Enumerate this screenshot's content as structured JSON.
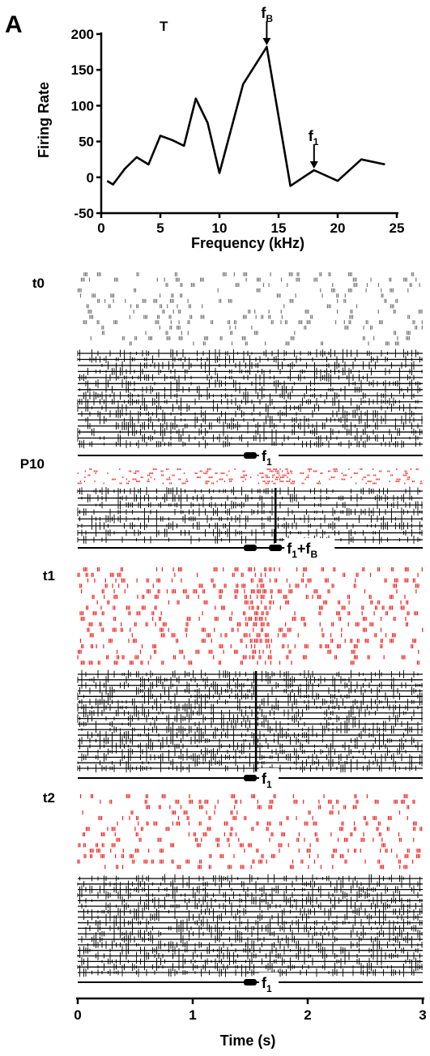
{
  "panel_label": "A",
  "chart_data": [
    {
      "type": "line",
      "title": "T",
      "xlabel": "Frequency (kHz)",
      "ylabel": "Firing Rate",
      "xlim": [
        0,
        25
      ],
      "ylim": [
        -50,
        200
      ],
      "xticks": [
        0,
        5,
        10,
        15,
        20,
        25
      ],
      "yticks": [
        -50,
        0,
        50,
        100,
        150,
        200
      ],
      "x": [
        0.5,
        1,
        2,
        3,
        4,
        5,
        6,
        7,
        8,
        9,
        10,
        12,
        14,
        16,
        18,
        20,
        22,
        24
      ],
      "y": [
        -5,
        -10,
        12,
        28,
        18,
        58,
        52,
        44,
        110,
        76,
        6,
        130,
        182,
        -12,
        10,
        -5,
        25,
        18
      ],
      "grid": false,
      "annotations": [
        {
          "id": "fB",
          "text": "f",
          "sub": "B",
          "x": 14,
          "y": 182
        },
        {
          "id": "f1",
          "text": "f",
          "sub": "1",
          "x": 18,
          "y": 10
        }
      ]
    },
    {
      "type": "raster",
      "xlabel": "Time (s)",
      "xlim": [
        0,
        3
      ],
      "xticks": [
        0,
        1,
        2,
        3
      ],
      "stimulus_onset_s": 1.5,
      "panels": [
        {
          "id": "t0",
          "label": "t0",
          "raster_color": "#777777",
          "stimulus_text": "f",
          "stimulus_sub": "1",
          "stimulus_extra": "",
          "stimulus_extra_sub": ""
        },
        {
          "id": "p10",
          "label": "P10",
          "raster_color": "#ee2222",
          "stimulus_text": "f",
          "stimulus_sub": "1",
          "stimulus_extra": "+f",
          "stimulus_extra_sub": "B"
        },
        {
          "id": "t1",
          "label": "t1",
          "raster_color": "#ee2222",
          "stimulus_text": "f",
          "stimulus_sub": "1",
          "stimulus_extra": "",
          "stimulus_extra_sub": ""
        },
        {
          "id": "t2",
          "label": "t2",
          "raster_color": "#ee2222",
          "stimulus_text": "f",
          "stimulus_sub": "1",
          "stimulus_extra": "",
          "stimulus_extra_sub": ""
        }
      ]
    }
  ]
}
